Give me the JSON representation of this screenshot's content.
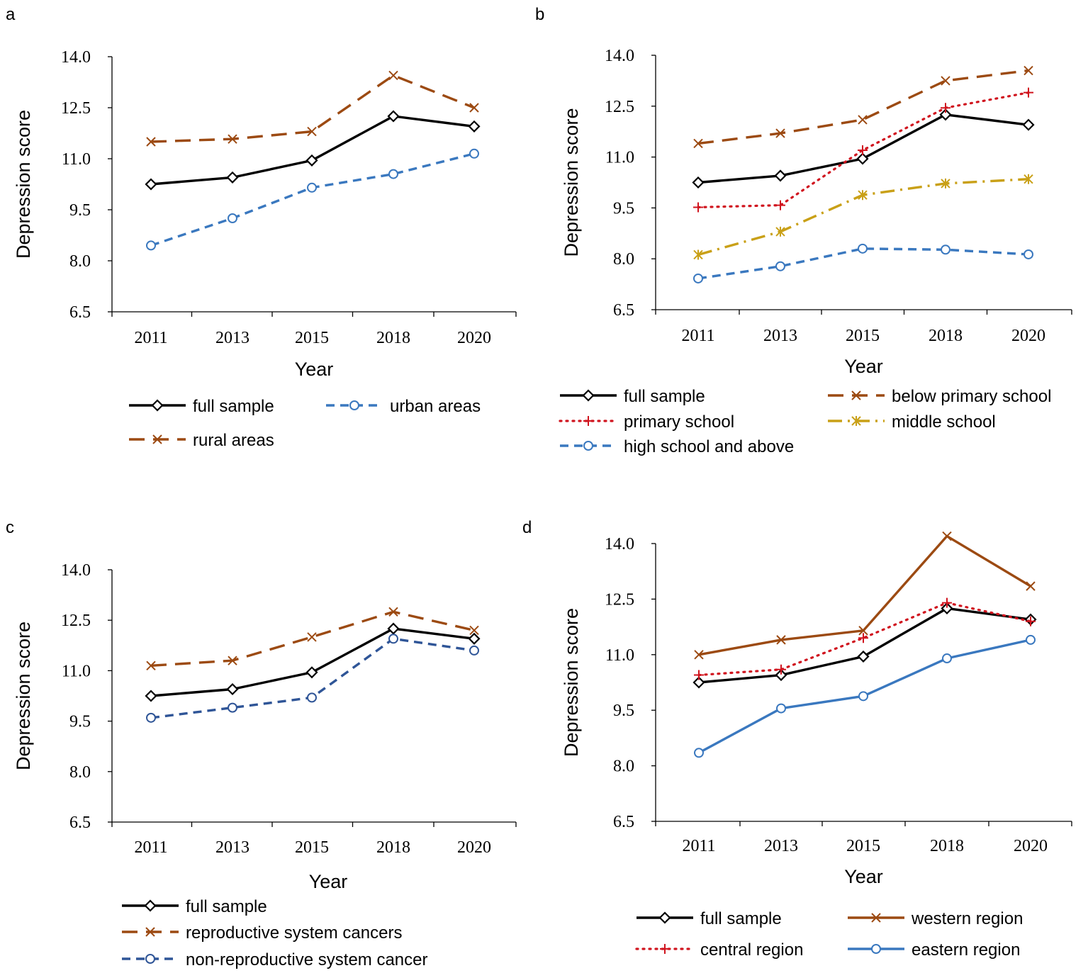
{
  "styles": {
    "full": {
      "color": "#000000",
      "dash": "",
      "marker": "diamond"
    },
    "rural": {
      "color": "#9C4A12",
      "dash": "22 12",
      "marker": "x"
    },
    "urban": {
      "color": "#3A78BF",
      "dash": "12 8",
      "marker": "circle"
    },
    "below_primary": {
      "color": "#9C4A12",
      "dash": "22 12",
      "marker": "x"
    },
    "primary": {
      "color": "#D0141E",
      "dash": "2 7",
      "marker": "plus"
    },
    "middle": {
      "color": "#C9A017",
      "dash": "20 8 3 8",
      "marker": "star"
    },
    "high": {
      "color": "#3A78BF",
      "dash": "12 8",
      "marker": "circle"
    },
    "repro": {
      "color": "#9C4A12",
      "dash": "22 12",
      "marker": "x"
    },
    "nonrepro": {
      "color": "#2F5597",
      "dash": "12 8",
      "marker": "circle"
    },
    "western": {
      "color": "#9C4A12",
      "dash": "",
      "marker": "x"
    },
    "central": {
      "color": "#D0141E",
      "dash": "2 7",
      "marker": "plus"
    },
    "eastern": {
      "color": "#3A78BF",
      "dash": "",
      "marker": "circle"
    }
  },
  "chart_data": [
    {
      "panel": "a",
      "type": "line",
      "title": "",
      "xlabel": "Year",
      "ylabel": "Depression score",
      "categories": [
        "2011",
        "2013",
        "2015",
        "2018",
        "2020"
      ],
      "ylim": [
        6.5,
        14.0
      ],
      "yticks": [
        "6.5",
        "8.0",
        "9.5",
        "11.0",
        "12.5",
        "14.0"
      ],
      "legend_position": "bottom",
      "series": [
        {
          "name": "full sample",
          "style": "full",
          "values": [
            10.25,
            10.45,
            10.95,
            12.25,
            11.95
          ]
        },
        {
          "name": "urban areas",
          "style": "urban",
          "values": [
            8.45,
            9.25,
            10.15,
            10.55,
            11.15
          ]
        },
        {
          "name": "rural areas",
          "style": "rural",
          "values": [
            11.5,
            11.58,
            11.8,
            13.45,
            12.5
          ]
        }
      ]
    },
    {
      "panel": "b",
      "type": "line",
      "title": "",
      "xlabel": "Year",
      "ylabel": "Depression score",
      "categories": [
        "2011",
        "2013",
        "2015",
        "2018",
        "2020"
      ],
      "ylim": [
        6.5,
        14.0
      ],
      "yticks": [
        "6.5",
        "8.0",
        "9.5",
        "11.0",
        "12.5",
        "14.0"
      ],
      "legend_position": "bottom",
      "series": [
        {
          "name": "full sample",
          "style": "full",
          "values": [
            10.25,
            10.45,
            10.95,
            12.25,
            11.95
          ]
        },
        {
          "name": "below primary school",
          "style": "below_primary",
          "values": [
            11.4,
            11.7,
            12.1,
            13.25,
            13.55
          ]
        },
        {
          "name": "primary school",
          "style": "primary",
          "values": [
            9.52,
            9.58,
            11.2,
            12.45,
            12.9
          ]
        },
        {
          "name": "middle school",
          "style": "middle",
          "values": [
            8.12,
            8.8,
            9.88,
            10.22,
            10.35
          ]
        },
        {
          "name": "high school and above",
          "style": "high",
          "values": [
            7.42,
            7.78,
            8.3,
            8.27,
            8.13
          ]
        }
      ]
    },
    {
      "panel": "c",
      "type": "line",
      "title": "",
      "xlabel": "Year",
      "ylabel": "Depression score",
      "categories": [
        "2011",
        "2013",
        "2015",
        "2018",
        "2020"
      ],
      "ylim": [
        6.5,
        14.0
      ],
      "yticks": [
        "6.5",
        "8.0",
        "9.5",
        "11.0",
        "12.5",
        "14.0"
      ],
      "legend_position": "bottom",
      "series": [
        {
          "name": "full sample",
          "style": "full",
          "values": [
            10.25,
            10.45,
            10.95,
            12.25,
            11.95
          ]
        },
        {
          "name": "reproductive system cancers",
          "style": "repro",
          "values": [
            11.15,
            11.3,
            12.0,
            12.75,
            12.2
          ]
        },
        {
          "name": "non-reproductive system cancer",
          "style": "nonrepro",
          "values": [
            9.6,
            9.9,
            10.2,
            11.95,
            11.6
          ]
        }
      ]
    },
    {
      "panel": "d",
      "type": "line",
      "title": "",
      "xlabel": "Year",
      "ylabel": "Depression score",
      "categories": [
        "2011",
        "2013",
        "2015",
        "2018",
        "2020"
      ],
      "ylim": [
        6.5,
        14.0
      ],
      "yticks": [
        "6.5",
        "8.0",
        "9.5",
        "11.0",
        "12.5",
        "14.0"
      ],
      "legend_position": "bottom",
      "series": [
        {
          "name": "full sample",
          "style": "full",
          "values": [
            10.25,
            10.45,
            10.95,
            12.25,
            11.95
          ]
        },
        {
          "name": "western region",
          "style": "western",
          "values": [
            11.0,
            11.4,
            11.65,
            14.2,
            12.85
          ]
        },
        {
          "name": "central region",
          "style": "central",
          "values": [
            10.45,
            10.6,
            11.45,
            12.4,
            11.9
          ]
        },
        {
          "name": "eastern region",
          "style": "eastern",
          "values": [
            8.35,
            9.55,
            9.88,
            10.9,
            11.4
          ]
        }
      ]
    }
  ]
}
